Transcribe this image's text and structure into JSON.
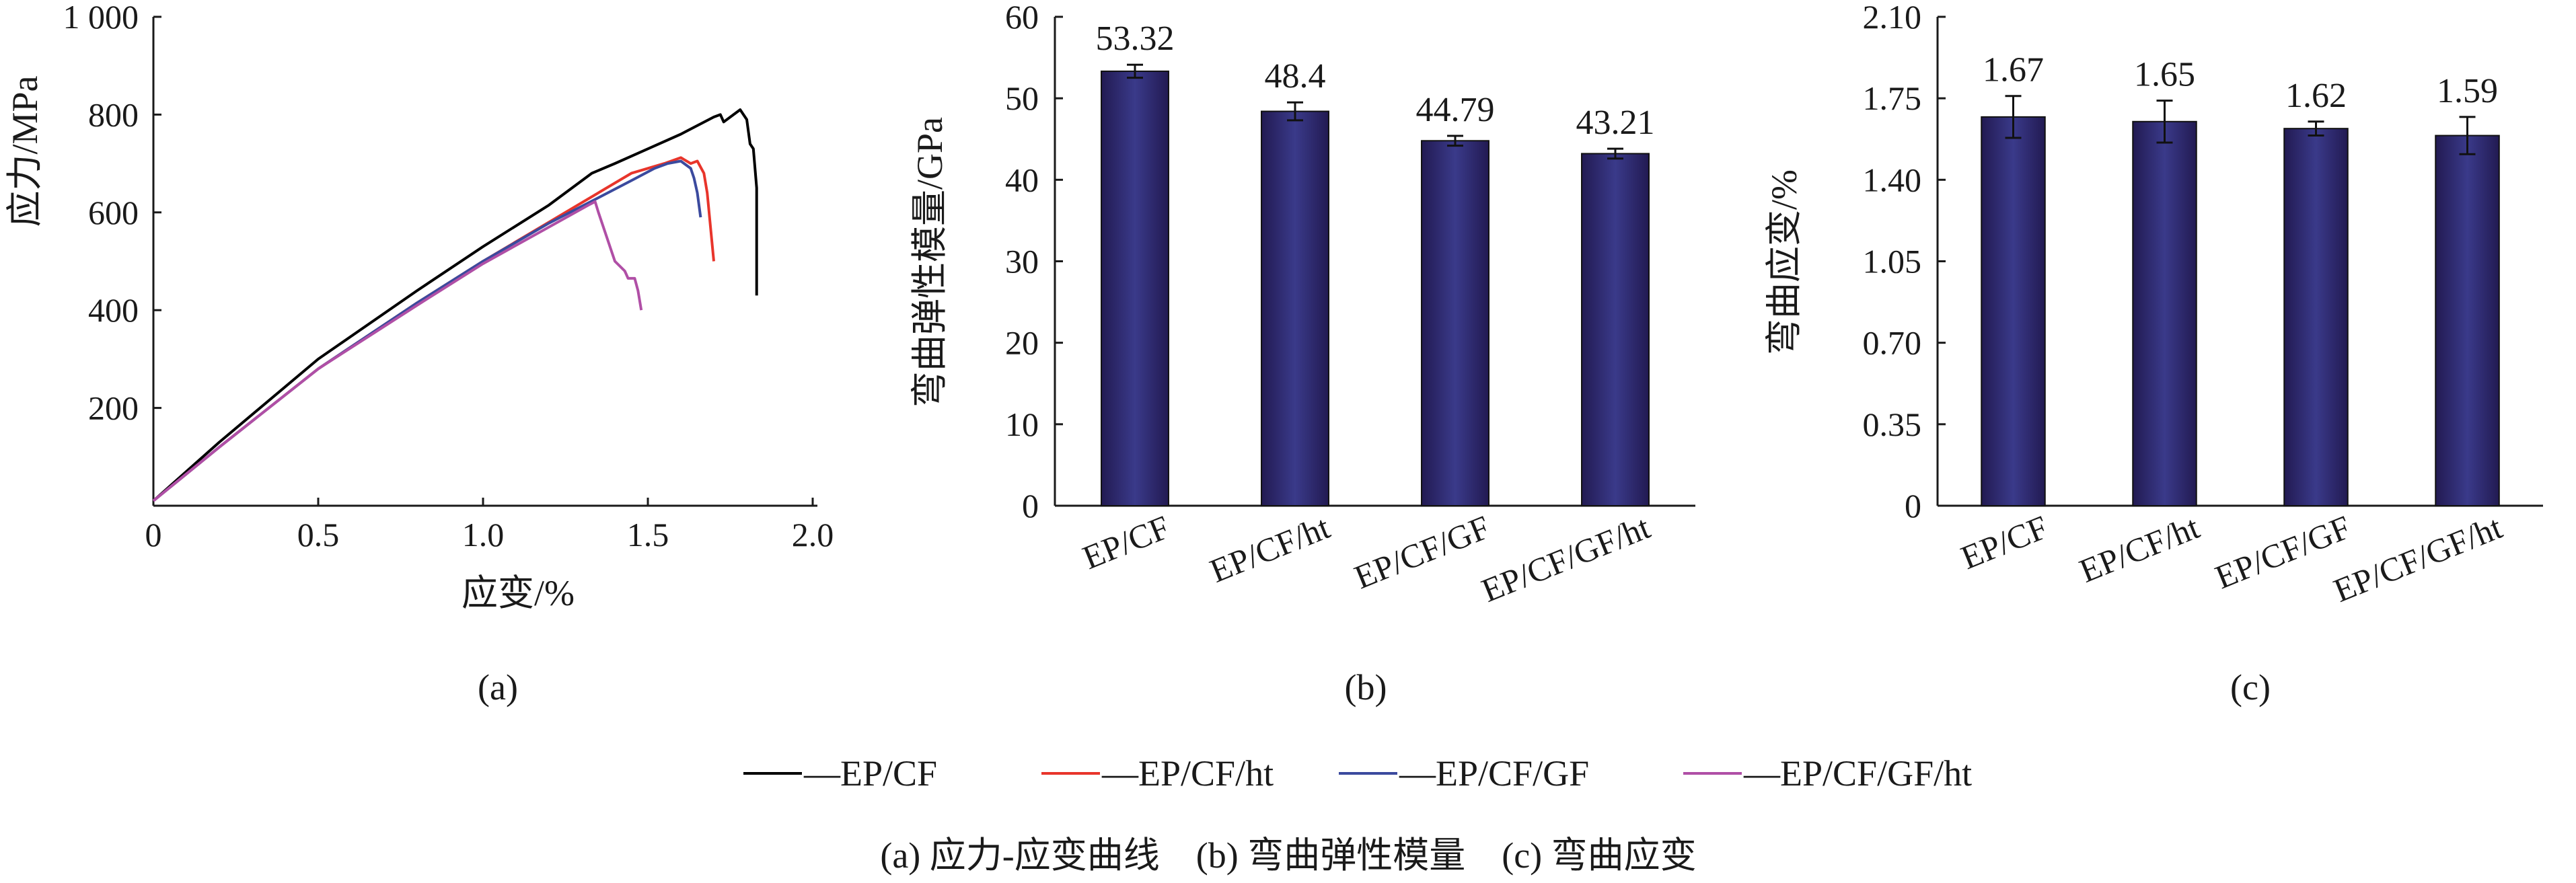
{
  "colors": {
    "EP/CF": "#000000",
    "EP/CF/ht": "#e8352b",
    "EP/CF/GF": "#3b4a9e",
    "EP/CF/GF/ht": "#b04fa6",
    "bar_dark": "#221a52",
    "bar_mid": "#3a3a8a"
  },
  "legend": {
    "items": [
      "—EP/CF",
      "—EP/CF/ht",
      "—EP/CF/GF",
      "—EP/CF/GF/ht"
    ]
  },
  "caption": "(a) 应力-应变曲线　(b) 弯曲弹性模量　(c) 弯曲应变",
  "chart_data": [
    {
      "type": "line",
      "panel_label": "(a)",
      "xlabel": "应变/%",
      "ylabel": "应力/MPa",
      "xlim": [
        0,
        2.0
      ],
      "ylim": [
        0,
        1000
      ],
      "xticks": [
        "0",
        "0.5",
        "1.0",
        "1.5",
        "2.0"
      ],
      "yticks": [
        "200",
        "400",
        "600",
        "800",
        "1 000"
      ],
      "grid": false,
      "series": [
        {
          "name": "EP/CF",
          "points": [
            [
              0,
              10
            ],
            [
              0.2,
              130
            ],
            [
              0.5,
              300
            ],
            [
              0.8,
              440
            ],
            [
              1.0,
              530
            ],
            [
              1.2,
              615
            ],
            [
              1.33,
              680
            ],
            [
              1.4,
              700
            ],
            [
              1.5,
              730
            ],
            [
              1.6,
              760
            ],
            [
              1.7,
              795
            ],
            [
              1.72,
              800
            ],
            [
              1.73,
              785
            ],
            [
              1.76,
              800
            ],
            [
              1.78,
              810
            ],
            [
              1.8,
              790
            ],
            [
              1.81,
              740
            ],
            [
              1.82,
              730
            ],
            [
              1.83,
              650
            ],
            [
              1.83,
              430
            ]
          ]
        },
        {
          "name": "EP/CF/ht",
          "points": [
            [
              0,
              10
            ],
            [
              0.2,
              120
            ],
            [
              0.5,
              280
            ],
            [
              0.8,
              415
            ],
            [
              1.0,
              500
            ],
            [
              1.2,
              580
            ],
            [
              1.35,
              640
            ],
            [
              1.45,
              680
            ],
            [
              1.55,
              700
            ],
            [
              1.6,
              712
            ],
            [
              1.63,
              700
            ],
            [
              1.65,
              705
            ],
            [
              1.67,
              680
            ],
            [
              1.68,
              640
            ],
            [
              1.69,
              570
            ],
            [
              1.7,
              500
            ]
          ]
        },
        {
          "name": "EP/CF/GF",
          "points": [
            [
              0,
              10
            ],
            [
              0.2,
              120
            ],
            [
              0.5,
              280
            ],
            [
              0.8,
              415
            ],
            [
              1.0,
              500
            ],
            [
              1.2,
              578
            ],
            [
              1.35,
              630
            ],
            [
              1.45,
              665
            ],
            [
              1.52,
              690
            ],
            [
              1.56,
              700
            ],
            [
              1.6,
              705
            ],
            [
              1.63,
              690
            ],
            [
              1.64,
              670
            ],
            [
              1.65,
              640
            ],
            [
              1.66,
              590
            ]
          ]
        },
        {
          "name": "EP/CF/GF/ht",
          "points": [
            [
              0,
              10
            ],
            [
              0.2,
              120
            ],
            [
              0.5,
              280
            ],
            [
              0.8,
              410
            ],
            [
              1.0,
              495
            ],
            [
              1.2,
              570
            ],
            [
              1.32,
              615
            ],
            [
              1.34,
              622
            ],
            [
              1.35,
              600
            ],
            [
              1.37,
              560
            ],
            [
              1.39,
              520
            ],
            [
              1.4,
              500
            ],
            [
              1.43,
              480
            ],
            [
              1.44,
              465
            ],
            [
              1.46,
              465
            ],
            [
              1.47,
              440
            ],
            [
              1.48,
              400
            ]
          ]
        }
      ]
    },
    {
      "type": "bar",
      "panel_label": "(b)",
      "ylabel": "弯曲弹性模量/GPa",
      "xlabel": "",
      "categories": [
        "EP/CF",
        "EP/CF/ht",
        "EP/CF/GF",
        "EP/CF/GF/ht"
      ],
      "values": [
        53.32,
        48.4,
        44.79,
        43.21
      ],
      "value_labels": [
        "53.32",
        "48.4",
        "44.79",
        "43.21"
      ],
      "errors": [
        0.8,
        1.1,
        0.6,
        0.6
      ],
      "ylim": [
        0,
        60
      ],
      "yticks": [
        "0",
        "10",
        "20",
        "30",
        "40",
        "50",
        "60"
      ]
    },
    {
      "type": "bar",
      "panel_label": "(c)",
      "ylabel": "弯曲应变/%",
      "xlabel": "",
      "categories": [
        "EP/CF",
        "EP/CF/ht",
        "EP/CF/GF",
        "EP/CF/GF/ht"
      ],
      "values": [
        1.67,
        1.65,
        1.62,
        1.59
      ],
      "value_labels": [
        "1.67",
        "1.65",
        "1.62",
        "1.59"
      ],
      "errors": [
        0.09,
        0.09,
        0.03,
        0.08
      ],
      "ylim": [
        0,
        2.1
      ],
      "yticks": [
        "0",
        "0.35",
        "0.70",
        "1.05",
        "1.40",
        "1.75",
        "2.10"
      ]
    }
  ]
}
